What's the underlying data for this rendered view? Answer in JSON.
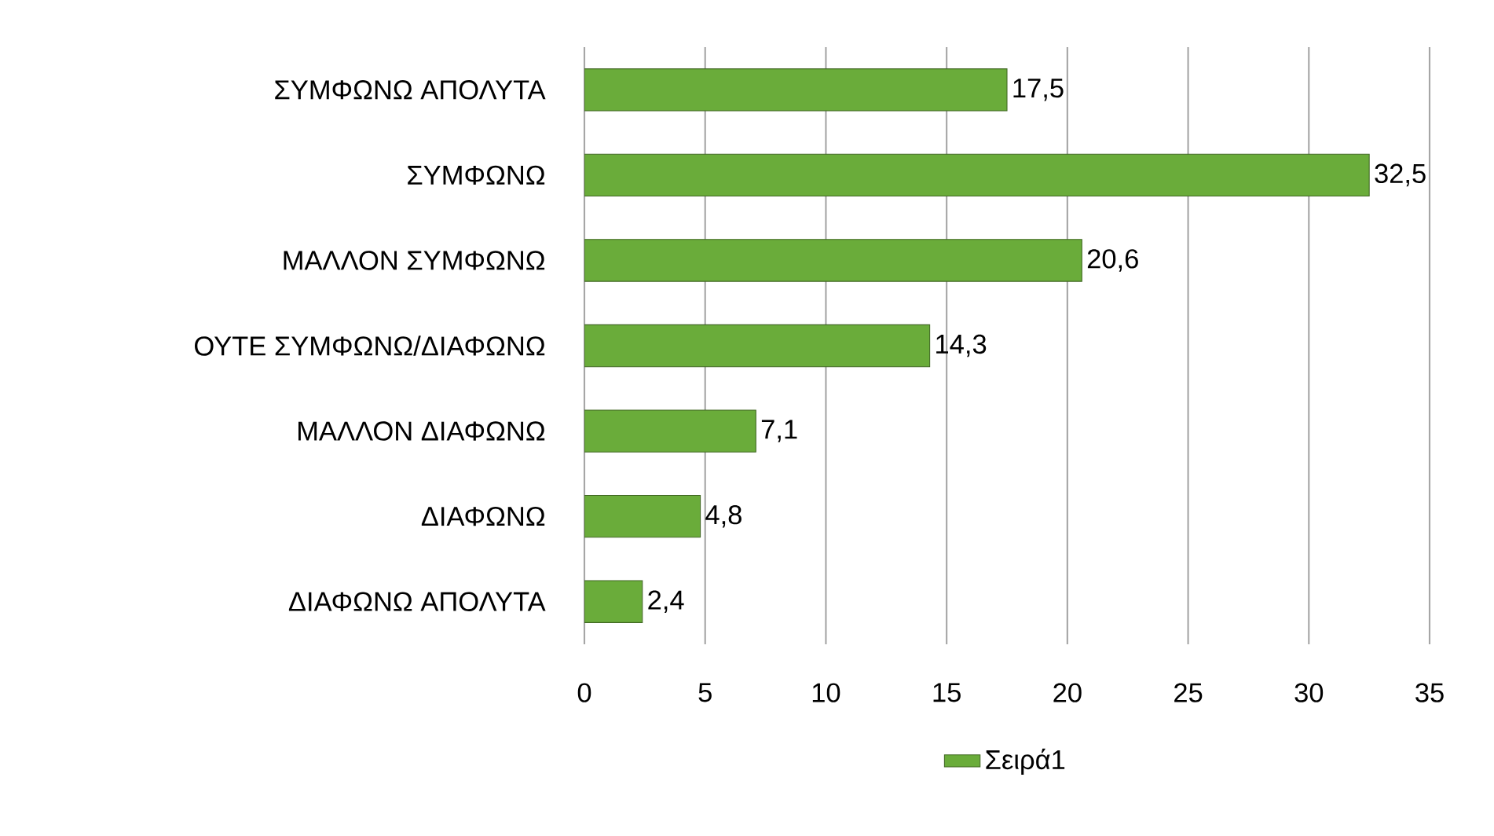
{
  "chart_data": {
    "type": "bar",
    "orientation": "horizontal",
    "categories": [
      "ΣΥΜΦΩΝΩ ΑΠΟΛΥΤΑ",
      "ΣΥΜΦΩΝΩ",
      "ΜΑΛΛΟΝ ΣΥΜΦΩΝΩ",
      "ΟΥΤΕ ΣΥΜΦΩΝΩ/ΔΙΑΦΩΝΩ",
      "ΜΑΛΛΟΝ ΔΙΑΦΩΝΩ",
      "ΔΙΑΦΩΝΩ",
      "ΔΙΑΦΩΝΩ ΑΠΟΛΥΤΑ"
    ],
    "series": [
      {
        "name": "Σειρά1",
        "color": "#6aac3a",
        "values": [
          17.5,
          32.5,
          20.6,
          14.3,
          7.1,
          4.8,
          2.4
        ],
        "value_labels": [
          "17,5",
          "32,5",
          "20,6",
          "14,3",
          "7,1",
          "4,8",
          "2,4"
        ]
      }
    ],
    "xlim": [
      0,
      35
    ],
    "xticks": [
      0,
      5,
      10,
      15,
      20,
      25,
      30,
      35
    ],
    "grid": "x",
    "legend": "bottom"
  }
}
